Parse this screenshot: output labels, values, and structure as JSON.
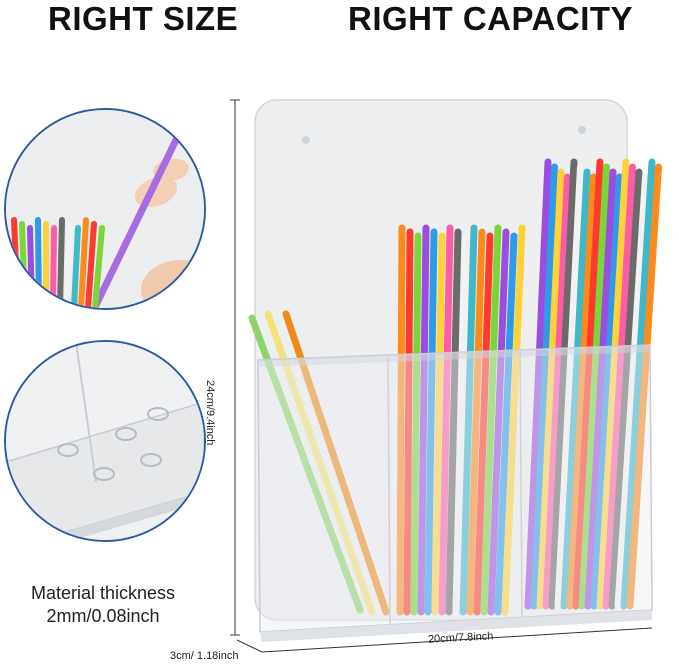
{
  "headline": {
    "left": "RIGHT  SIZE",
    "right": "RIGHT  CAPACITY"
  },
  "caption": {
    "line1": "Material thickness",
    "line2": "2mm/0.08inch"
  },
  "dimensions": {
    "height": "24cm/9.4inch",
    "width": "20cm/7.8inch",
    "depth": "3cm/ 1.18inch"
  },
  "colors": {
    "circle_border": "#2c5aa0",
    "straws": [
      "#ff8a1c",
      "#ff3b2f",
      "#7bd63a",
      "#9b4de0",
      "#2f9be8",
      "#ffd23a",
      "#ff5ca8",
      "#6b6b6b",
      "#f2f2f2",
      "#3fb8c9"
    ]
  }
}
